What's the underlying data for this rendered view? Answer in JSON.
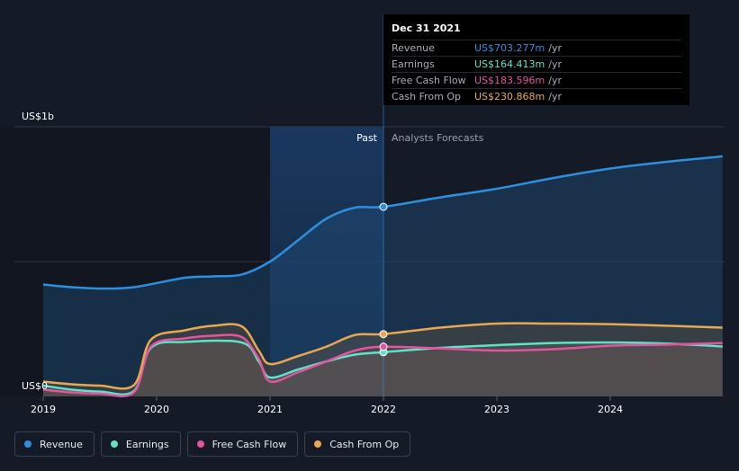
{
  "chart_data": {
    "type": "line",
    "y_label_top": "US$1b",
    "y_label_bottom": "US$0",
    "ylim": [
      0,
      1000
    ],
    "x_ticks": [
      "2019",
      "2020",
      "2021",
      "2022",
      "2023",
      "2024"
    ],
    "past_label": "Past",
    "forecast_label": "Analysts Forecasts",
    "past_end": "2022.0",
    "series": [
      {
        "name": "Revenue",
        "color": "#2d8fe0",
        "points": [
          [
            2019.0,
            415
          ],
          [
            2019.25,
            405
          ],
          [
            2019.5,
            400
          ],
          [
            2019.8,
            405
          ],
          [
            2020.25,
            440
          ],
          [
            2020.5,
            445
          ],
          [
            2020.75,
            452
          ],
          [
            2021.0,
            500
          ],
          [
            2021.25,
            580
          ],
          [
            2021.5,
            660
          ],
          [
            2021.75,
            700
          ],
          [
            2022.0,
            703
          ],
          [
            2022.5,
            738
          ],
          [
            2023.0,
            770
          ],
          [
            2023.5,
            810
          ],
          [
            2024.0,
            845
          ],
          [
            2024.5,
            870
          ],
          [
            2024.99,
            890
          ]
        ]
      },
      {
        "name": "Earnings",
        "color": "#5ee2c8",
        "points": [
          [
            2019.0,
            40
          ],
          [
            2019.25,
            25
          ],
          [
            2019.5,
            18
          ],
          [
            2019.8,
            20
          ],
          [
            2019.95,
            180
          ],
          [
            2020.25,
            202
          ],
          [
            2020.75,
            200
          ],
          [
            2020.9,
            130
          ],
          [
            2021.0,
            70
          ],
          [
            2021.25,
            100
          ],
          [
            2021.5,
            130
          ],
          [
            2021.75,
            155
          ],
          [
            2022.0,
            164
          ],
          [
            2022.5,
            180
          ],
          [
            2023.0,
            190
          ],
          [
            2023.5,
            198
          ],
          [
            2024.0,
            200
          ],
          [
            2024.5,
            196
          ],
          [
            2024.99,
            185
          ]
        ]
      },
      {
        "name": "Free Cash Flow",
        "color": "#e2549f",
        "points": [
          [
            2019.0,
            25
          ],
          [
            2019.25,
            15
          ],
          [
            2019.5,
            10
          ],
          [
            2019.8,
            15
          ],
          [
            2019.95,
            185
          ],
          [
            2020.25,
            215
          ],
          [
            2020.5,
            225
          ],
          [
            2020.75,
            220
          ],
          [
            2020.9,
            140
          ],
          [
            2021.0,
            55
          ],
          [
            2021.25,
            90
          ],
          [
            2021.5,
            130
          ],
          [
            2021.75,
            170
          ],
          [
            2022.0,
            184
          ],
          [
            2022.5,
            178
          ],
          [
            2023.0,
            170
          ],
          [
            2023.5,
            175
          ],
          [
            2024.0,
            188
          ],
          [
            2024.5,
            192
          ],
          [
            2024.99,
            198
          ]
        ]
      },
      {
        "name": "Cash From Op",
        "color": "#e8a852",
        "points": [
          [
            2019.0,
            55
          ],
          [
            2019.25,
            45
          ],
          [
            2019.5,
            40
          ],
          [
            2019.8,
            42
          ],
          [
            2019.95,
            210
          ],
          [
            2020.25,
            245
          ],
          [
            2020.5,
            262
          ],
          [
            2020.75,
            260
          ],
          [
            2020.9,
            170
          ],
          [
            2021.0,
            120
          ],
          [
            2021.25,
            150
          ],
          [
            2021.5,
            185
          ],
          [
            2021.75,
            228
          ],
          [
            2022.0,
            231
          ],
          [
            2022.5,
            255
          ],
          [
            2023.0,
            270
          ],
          [
            2023.5,
            270
          ],
          [
            2024.0,
            268
          ],
          [
            2024.5,
            262
          ],
          [
            2024.99,
            255
          ]
        ]
      }
    ],
    "tooltip": {
      "date": "Dec 31 2021",
      "unit": "/yr",
      "rows": [
        {
          "label": "Revenue",
          "value": "US$703.277m",
          "color": "#2d8fe0"
        },
        {
          "label": "Earnings",
          "value": "US$164.413m",
          "color": "#5ee2c8"
        },
        {
          "label": "Free Cash Flow",
          "value": "US$183.596m",
          "color": "#e2549f"
        },
        {
          "label": "Cash From Op",
          "value": "US$230.868m",
          "color": "#e8a852"
        }
      ]
    },
    "legend": [
      {
        "label": "Revenue",
        "color": "#2d8fe0"
      },
      {
        "label": "Earnings",
        "color": "#5ee2c8"
      },
      {
        "label": "Free Cash Flow",
        "color": "#e2549f"
      },
      {
        "label": "Cash From Op",
        "color": "#e8a852"
      }
    ]
  }
}
